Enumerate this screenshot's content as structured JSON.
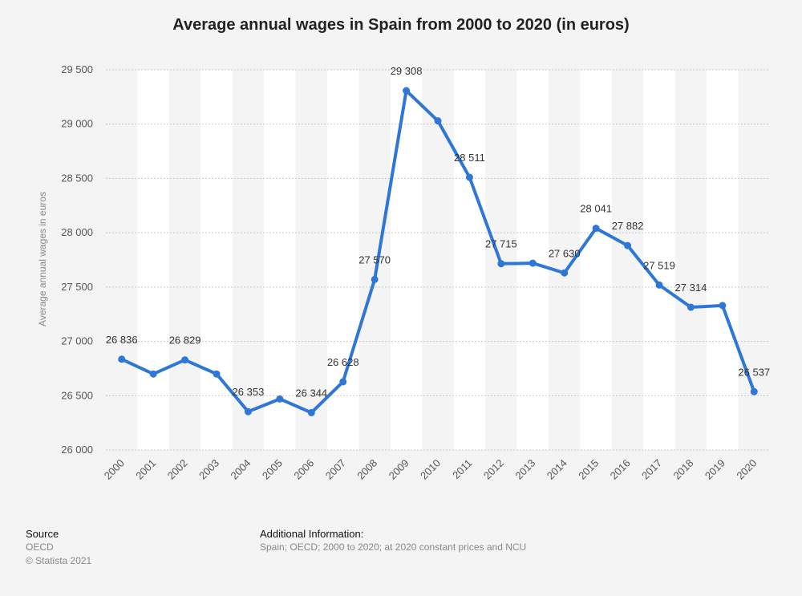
{
  "chart_data": {
    "type": "line",
    "title": "Average annual wages in Spain from 2000 to 2020 (in euros)",
    "ylabel": "Average annual wages in euros",
    "xlabel": "",
    "ylim": [
      26000,
      29500
    ],
    "yticks": [
      26000,
      26500,
      27000,
      27500,
      28000,
      28500,
      29000,
      29500
    ],
    "ytick_labels": [
      "26 000",
      "26 500",
      "27 000",
      "27 500",
      "28 000",
      "28 500",
      "29 000",
      "29 500"
    ],
    "categories": [
      "2000",
      "2001",
      "2002",
      "2003",
      "2004",
      "2005",
      "2006",
      "2007",
      "2008",
      "2009",
      "2010",
      "2011",
      "2012",
      "2013",
      "2014",
      "2015",
      "2016",
      "2017",
      "2018",
      "2019",
      "2020"
    ],
    "values": [
      26836,
      26700,
      26829,
      26700,
      26353,
      26470,
      26344,
      26628,
      27570,
      29308,
      29030,
      28511,
      27715,
      27720,
      27630,
      28041,
      27882,
      27519,
      27314,
      27330,
      26537
    ],
    "data_labels": [
      {
        "index": 0,
        "text": "26 836"
      },
      {
        "index": 2,
        "text": "26 829"
      },
      {
        "index": 4,
        "text": "26 353"
      },
      {
        "index": 6,
        "text": "26 344"
      },
      {
        "index": 7,
        "text": "26 628"
      },
      {
        "index": 8,
        "text": "27 570"
      },
      {
        "index": 9,
        "text": "29 308"
      },
      {
        "index": 11,
        "text": "28 511"
      },
      {
        "index": 12,
        "text": "27 715"
      },
      {
        "index": 14,
        "text": "27 630"
      },
      {
        "index": 15,
        "text": "28 041"
      },
      {
        "index": 16,
        "text": "27 882"
      },
      {
        "index": 17,
        "text": "27 519"
      },
      {
        "index": 18,
        "text": "27 314"
      },
      {
        "index": 20,
        "text": "26 537"
      }
    ],
    "line_color": "#2f77d6",
    "grid": true,
    "legend": "none"
  },
  "footer": {
    "source_heading": "Source",
    "source_lines": [
      "OECD",
      "© Statista 2021"
    ],
    "info_heading": "Additional Information:",
    "info_text": "Spain; OECD; 2000 to 2020; at 2020 constant prices and NCU"
  }
}
